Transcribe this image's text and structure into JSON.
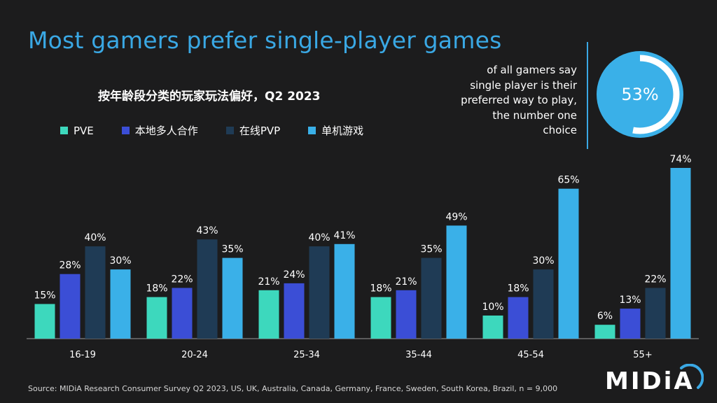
{
  "header": {
    "title": "Most gamers prefer single-player games"
  },
  "callout": {
    "lines": [
      "of all gamers say",
      "single player is their",
      "preferred way to play,",
      "the number one",
      "choice"
    ],
    "value": 53,
    "value_label": "53%"
  },
  "chart_data": {
    "type": "bar",
    "title": "按年龄段分类的玩家玩法偏好，Q2 2023",
    "xlabel": "",
    "ylabel": "",
    "ylim": [
      0,
      80
    ],
    "value_suffix": "%",
    "grid": false,
    "legend_position": "top-left",
    "categories": [
      "16-19",
      "20-24",
      "25-34",
      "35-44",
      "45-54",
      "55+"
    ],
    "series": [
      {
        "name": "PVE",
        "color": "#3dd8bd",
        "values": [
          15,
          18,
          21,
          18,
          10,
          6
        ]
      },
      {
        "name": "本地多人合作",
        "color": "#3b4ed6",
        "values": [
          28,
          22,
          24,
          21,
          18,
          13
        ]
      },
      {
        "name": "在线PVP",
        "color": "#1f3b55",
        "values": [
          40,
          43,
          40,
          35,
          30,
          22
        ]
      },
      {
        "name": "单机游戏",
        "color": "#3ab0e8",
        "values": [
          30,
          35,
          41,
          49,
          65,
          74
        ]
      }
    ]
  },
  "footer": {
    "source": "Source: MIDiA Research Consumer Survey Q2 2023, US, UK, Australia, Canada, Germany, France, Sweden, South Korea, Brazil, n = 9,000",
    "logo_text": "MIDiA"
  },
  "colors": {
    "background": "#1c1c1d",
    "accent": "#3aa8e4",
    "donut_fill": "#3ab0e8",
    "donut_ring": "#ffffff"
  }
}
